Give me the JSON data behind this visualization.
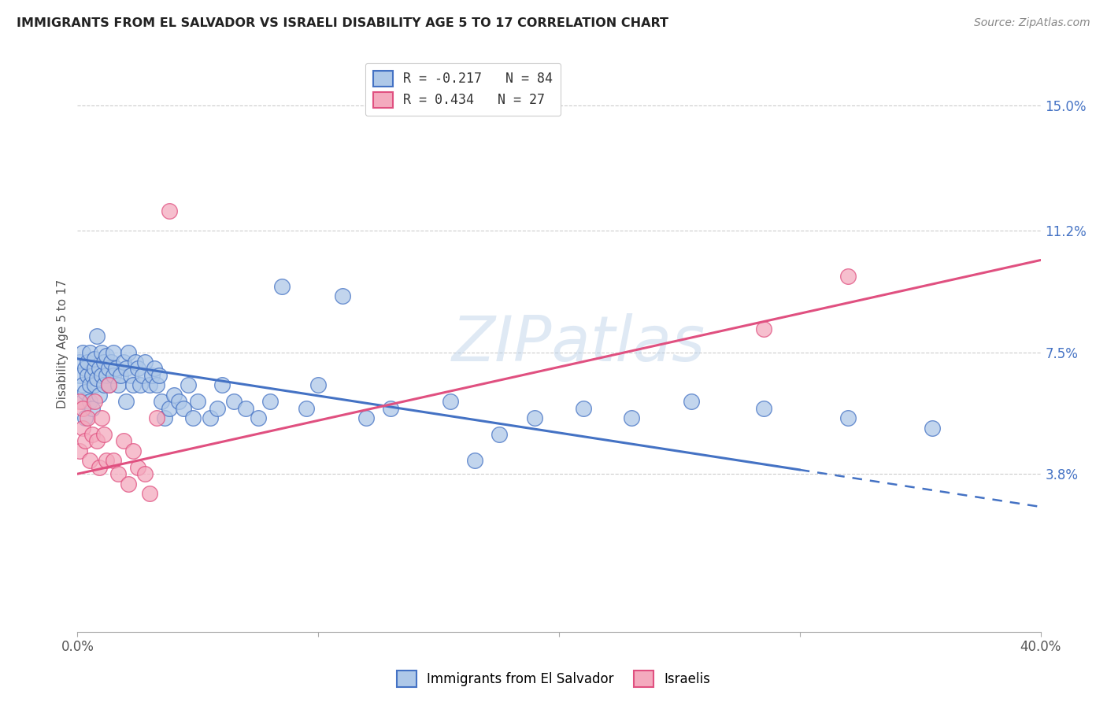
{
  "title": "IMMIGRANTS FROM EL SALVADOR VS ISRAELI DISABILITY AGE 5 TO 17 CORRELATION CHART",
  "source": "Source: ZipAtlas.com",
  "ylabel": "Disability Age 5 to 17",
  "ytick_labels": [
    "3.8%",
    "7.5%",
    "11.2%",
    "15.0%"
  ],
  "ytick_values": [
    0.038,
    0.075,
    0.112,
    0.15
  ],
  "xlim": [
    0.0,
    0.4
  ],
  "ylim": [
    -0.01,
    0.165
  ],
  "legend_r1": "R = -0.217   N = 84",
  "legend_r2": "R = 0.434   N = 27",
  "color_blue": "#aec8e8",
  "color_pink": "#f4aabe",
  "color_line_blue": "#4472c4",
  "color_line_pink": "#e05080",
  "blue_line_y_start": 0.073,
  "blue_line_y_end": 0.028,
  "blue_line_solid_end": 0.3,
  "pink_line_y_start": 0.038,
  "pink_line_y_end": 0.103,
  "blue_scatter_x": [
    0.001,
    0.001,
    0.002,
    0.002,
    0.002,
    0.003,
    0.003,
    0.003,
    0.004,
    0.004,
    0.005,
    0.005,
    0.005,
    0.006,
    0.006,
    0.007,
    0.007,
    0.007,
    0.008,
    0.008,
    0.009,
    0.009,
    0.01,
    0.01,
    0.011,
    0.011,
    0.012,
    0.012,
    0.013,
    0.013,
    0.014,
    0.015,
    0.015,
    0.016,
    0.017,
    0.018,
    0.019,
    0.02,
    0.02,
    0.021,
    0.022,
    0.023,
    0.024,
    0.025,
    0.026,
    0.027,
    0.028,
    0.03,
    0.031,
    0.032,
    0.033,
    0.034,
    0.035,
    0.036,
    0.038,
    0.04,
    0.042,
    0.044,
    0.046,
    0.048,
    0.05,
    0.055,
    0.058,
    0.06,
    0.065,
    0.07,
    0.075,
    0.08,
    0.085,
    0.095,
    0.1,
    0.11,
    0.12,
    0.13,
    0.155,
    0.165,
    0.175,
    0.19,
    0.21,
    0.23,
    0.255,
    0.285,
    0.32,
    0.355
  ],
  "blue_scatter_y": [
    0.072,
    0.068,
    0.075,
    0.065,
    0.06,
    0.07,
    0.063,
    0.055,
    0.068,
    0.072,
    0.065,
    0.06,
    0.075,
    0.068,
    0.058,
    0.07,
    0.065,
    0.073,
    0.067,
    0.08,
    0.062,
    0.07,
    0.075,
    0.068,
    0.065,
    0.072,
    0.068,
    0.074,
    0.07,
    0.065,
    0.072,
    0.068,
    0.075,
    0.07,
    0.065,
    0.068,
    0.072,
    0.07,
    0.06,
    0.075,
    0.068,
    0.065,
    0.072,
    0.07,
    0.065,
    0.068,
    0.072,
    0.065,
    0.068,
    0.07,
    0.065,
    0.068,
    0.06,
    0.055,
    0.058,
    0.062,
    0.06,
    0.058,
    0.065,
    0.055,
    0.06,
    0.055,
    0.058,
    0.065,
    0.06,
    0.058,
    0.055,
    0.06,
    0.095,
    0.058,
    0.065,
    0.092,
    0.055,
    0.058,
    0.06,
    0.042,
    0.05,
    0.055,
    0.058,
    0.055,
    0.06,
    0.058,
    0.055,
    0.052
  ],
  "pink_scatter_x": [
    0.001,
    0.001,
    0.002,
    0.002,
    0.003,
    0.004,
    0.005,
    0.006,
    0.007,
    0.008,
    0.009,
    0.01,
    0.011,
    0.012,
    0.013,
    0.015,
    0.017,
    0.019,
    0.021,
    0.023,
    0.025,
    0.028,
    0.03,
    0.033,
    0.038,
    0.285,
    0.32
  ],
  "pink_scatter_y": [
    0.06,
    0.045,
    0.058,
    0.052,
    0.048,
    0.055,
    0.042,
    0.05,
    0.06,
    0.048,
    0.04,
    0.055,
    0.05,
    0.042,
    0.065,
    0.042,
    0.038,
    0.048,
    0.035,
    0.045,
    0.04,
    0.038,
    0.032,
    0.055,
    0.118,
    0.082,
    0.098
  ]
}
